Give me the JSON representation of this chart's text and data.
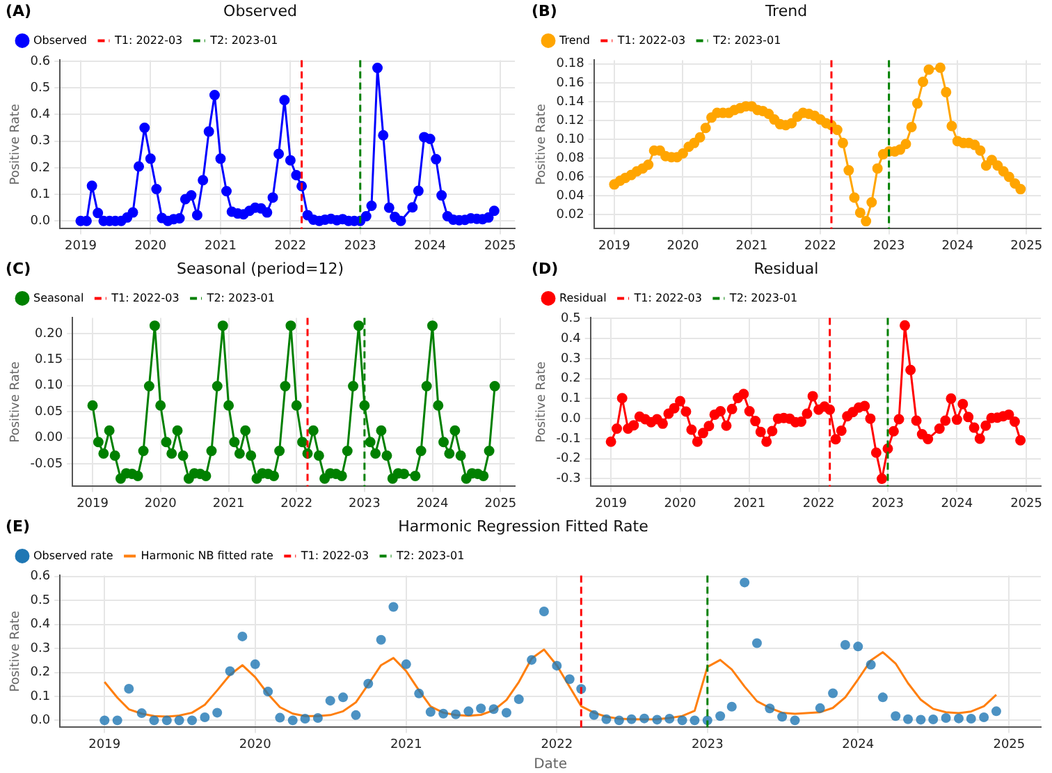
{
  "chart_data": [
    {
      "type": "line",
      "title": "Observed",
      "ylabel": "Positive Rate",
      "annotations": [
        "(A)"
      ],
      "grid": true,
      "legend": "top left",
      "marker": "circle",
      "x": [
        "2019-01",
        "2019-02",
        "2019-03",
        "2019-04",
        "2019-05",
        "2019-06",
        "2019-07",
        "2019-08",
        "2019-09",
        "2019-10",
        "2019-11",
        "2019-12",
        "2020-01",
        "2020-02",
        "2020-03",
        "2020-04",
        "2020-05",
        "2020-06",
        "2020-07",
        "2020-08",
        "2020-09",
        "2020-10",
        "2020-11",
        "2020-12",
        "2021-01",
        "2021-02",
        "2021-03",
        "2021-04",
        "2021-05",
        "2021-06",
        "2021-07",
        "2021-08",
        "2021-09",
        "2021-10",
        "2021-11",
        "2021-12",
        "2022-01",
        "2022-02",
        "2022-03",
        "2022-04",
        "2022-05",
        "2022-06",
        "2022-07",
        "2022-08",
        "2022-09",
        "2022-10",
        "2022-11",
        "2022-12",
        "2023-01",
        "2023-02",
        "2023-03",
        "2023-04",
        "2023-05",
        "2023-06",
        "2023-07",
        "2023-08",
        "2023-10",
        "2023-11",
        "2023-12",
        "2024-01",
        "2024-02",
        "2024-03",
        "2024-04",
        "2024-05",
        "2024-06",
        "2024-07",
        "2024-08",
        "2024-09",
        "2024-10",
        "2024-11",
        "2024-12"
      ],
      "xlim": [
        "2018-09-15",
        "2025-03-19"
      ],
      "xticks": [
        "2019",
        "2020",
        "2021",
        "2022",
        "2023",
        "2024",
        "2025"
      ],
      "ylim": [
        -0.029,
        0.604
      ],
      "yticks": [
        {
          "value": 0,
          "label": "0.0"
        },
        0.1,
        0.2,
        0.3,
        0.4,
        0.5,
        0.6
      ],
      "series": [
        {
          "name": "Observed",
          "color": "#0000ff",
          "values": [
            0,
            0,
            0.132,
            0.03,
            0,
            0,
            0,
            0,
            0.013,
            0.032,
            0.205,
            0.35,
            0.234,
            0.12,
            0.011,
            0,
            0.007,
            0.01,
            0.082,
            0.096,
            0.022,
            0.153,
            0.336,
            0.473,
            0.234,
            0.112,
            0.035,
            0.028,
            0.025,
            0.038,
            0.05,
            0.047,
            0.032,
            0.088,
            0.252,
            0.454,
            0.228,
            0.172,
            0.131,
            0.022,
            0.005,
            0,
            0.005,
            0.008,
            0.003,
            0.007,
            0,
            0,
            0,
            0.018,
            0.057,
            0.575,
            0.322,
            0.05,
            0.015,
            0,
            0.051,
            0.113,
            0.315,
            0.308,
            0.232,
            0.096,
            0.018,
            0.005,
            0.003,
            0.004,
            0.01,
            0.008,
            0.007,
            0.013,
            0.038
          ]
        }
      ],
      "ref_lines": [
        {
          "axis": "x",
          "value": "2022-03",
          "label": "T1: 2022-03",
          "color": "#ff0000",
          "line_style": "dashed"
        },
        {
          "axis": "x",
          "value": "2023-01",
          "label": "T2: 2023-01",
          "color": "#008000",
          "line_style": "dashed"
        }
      ]
    },
    {
      "type": "line",
      "title": "Trend",
      "ylabel": "Positive Rate",
      "annotations": [
        "(B)"
      ],
      "grid": true,
      "legend": "top left",
      "marker": "circle",
      "x": [
        "2019-01",
        "2019-02",
        "2019-03",
        "2019-04",
        "2019-05",
        "2019-06",
        "2019-07",
        "2019-08",
        "2019-09",
        "2019-10",
        "2019-11",
        "2019-12",
        "2020-01",
        "2020-02",
        "2020-03",
        "2020-04",
        "2020-05",
        "2020-06",
        "2020-07",
        "2020-08",
        "2020-09",
        "2020-10",
        "2020-11",
        "2020-12",
        "2021-01",
        "2021-02",
        "2021-03",
        "2021-04",
        "2021-05",
        "2021-06",
        "2021-07",
        "2021-08",
        "2021-09",
        "2021-10",
        "2021-11",
        "2021-12",
        "2022-01",
        "2022-02",
        "2022-03",
        "2022-04",
        "2022-05",
        "2022-06",
        "2022-07",
        "2022-08",
        "2022-09",
        "2022-10",
        "2022-11",
        "2022-12",
        "2023-01",
        "2023-02",
        "2023-03",
        "2023-04",
        "2023-05",
        "2023-06",
        "2023-07",
        "2023-08",
        "2023-10",
        "2023-11",
        "2023-12",
        "2024-01",
        "2024-02",
        "2024-03",
        "2024-04",
        "2024-05",
        "2024-06",
        "2024-07",
        "2024-08",
        "2024-09",
        "2024-10",
        "2024-11",
        "2024-12"
      ],
      "xlim": [
        "2018-09-15",
        "2025-03-19"
      ],
      "xticks": [
        "2019",
        "2020",
        "2021",
        "2022",
        "2023",
        "2024",
        "2025"
      ],
      "ylim": [
        0.005,
        0.184
      ],
      "yticks": [
        0.02,
        0.04,
        0.06,
        0.08,
        {
          "value": 0.1,
          "label": "0.10"
        },
        0.12,
        0.14,
        0.16,
        0.18
      ],
      "series": [
        {
          "name": "Trend",
          "color": "#ffa500",
          "values": [
            0.052,
            0.056,
            0.059,
            0.062,
            0.066,
            0.069,
            0.073,
            0.088,
            0.088,
            0.082,
            0.081,
            0.081,
            0.085,
            0.092,
            0.096,
            0.102,
            0.112,
            0.123,
            0.128,
            0.128,
            0.128,
            0.131,
            0.133,
            0.135,
            0.135,
            0.131,
            0.13,
            0.127,
            0.121,
            0.116,
            0.115,
            0.117,
            0.124,
            0.128,
            0.127,
            0.125,
            0.121,
            0.117,
            0.115,
            0.11,
            0.096,
            0.067,
            0.038,
            0.022,
            0.013,
            0.033,
            0.069,
            0.084,
            0.087,
            0.087,
            0.089,
            0.095,
            0.113,
            0.138,
            0.161,
            0.174,
            0.176,
            0.15,
            0.114,
            0.098,
            0.096,
            0.096,
            0.094,
            0.088,
            0.072,
            0.078,
            0.072,
            0.066,
            0.06,
            0.053,
            0.047
          ]
        }
      ],
      "ref_lines": [
        {
          "axis": "x",
          "value": "2022-03",
          "label": "T1: 2022-03",
          "color": "#ff0000",
          "line_style": "dashed"
        },
        {
          "axis": "x",
          "value": "2023-01",
          "label": "T2: 2023-01",
          "color": "#008000",
          "line_style": "dashed"
        }
      ]
    },
    {
      "type": "line",
      "title": "Seasonal (period=12)",
      "ylabel": "Positive Rate",
      "annotations": [
        "(C)"
      ],
      "grid": true,
      "legend": "top left",
      "marker": "circle",
      "x": [
        "2019-01",
        "2019-02",
        "2019-03",
        "2019-04",
        "2019-05",
        "2019-06",
        "2019-07",
        "2019-08",
        "2019-09",
        "2019-10",
        "2019-11",
        "2019-12",
        "2020-01",
        "2020-02",
        "2020-03",
        "2020-04",
        "2020-05",
        "2020-06",
        "2020-07",
        "2020-08",
        "2020-09",
        "2020-10",
        "2020-11",
        "2020-12",
        "2021-01",
        "2021-02",
        "2021-03",
        "2021-04",
        "2021-05",
        "2021-06",
        "2021-07",
        "2021-08",
        "2021-09",
        "2021-10",
        "2021-11",
        "2021-12",
        "2022-01",
        "2022-02",
        "2022-03",
        "2022-04",
        "2022-05",
        "2022-06",
        "2022-07",
        "2022-08",
        "2022-09",
        "2022-10",
        "2022-11",
        "2022-12",
        "2023-01",
        "2023-02",
        "2023-03",
        "2023-04",
        "2023-05",
        "2023-06",
        "2023-07",
        "2023-08",
        "2023-10",
        "2023-11",
        "2023-12",
        "2024-01",
        "2024-02",
        "2024-03",
        "2024-04",
        "2024-05",
        "2024-06",
        "2024-07",
        "2024-08",
        "2024-09",
        "2024-10",
        "2024-11",
        "2024-12"
      ],
      "xlim": [
        "2018-09-15",
        "2025-03-19"
      ],
      "xticks": [
        "2019",
        "2020",
        "2021",
        "2022",
        "2023",
        "2024",
        "2025"
      ],
      "ylim": [
        -0.093,
        0.23
      ],
      "yticks": [
        -0.05,
        {
          "value": 0,
          "label": "0.00"
        },
        0.05,
        {
          "value": 0.1,
          "label": "0.10"
        },
        0.15,
        {
          "value": 0.2,
          "label": "0.20"
        }
      ],
      "series": [
        {
          "name": "Seasonal",
          "color": "#008000",
          "values": [
            0.062,
            -0.008,
            -0.03,
            0.014,
            -0.034,
            -0.078,
            -0.068,
            -0.069,
            -0.073,
            -0.025,
            0.099,
            0.215,
            0.062,
            -0.008,
            -0.03,
            0.014,
            -0.034,
            -0.078,
            -0.068,
            -0.069,
            -0.073,
            -0.025,
            0.099,
            0.215,
            0.062,
            -0.008,
            -0.03,
            0.014,
            -0.034,
            -0.078,
            -0.068,
            -0.069,
            -0.073,
            -0.025,
            0.099,
            0.215,
            0.062,
            -0.008,
            -0.03,
            0.014,
            -0.034,
            -0.078,
            -0.068,
            -0.069,
            -0.073,
            -0.025,
            0.099,
            0.215,
            0.062,
            -0.008,
            -0.03,
            0.014,
            -0.034,
            -0.078,
            -0.068,
            -0.069,
            -0.073,
            -0.025,
            0.099,
            0.215,
            0.062,
            -0.008,
            -0.03,
            0.014,
            -0.034,
            -0.078,
            -0.068,
            -0.069,
            -0.073,
            -0.025,
            0.099
          ]
        }
      ],
      "ref_lines": [
        {
          "axis": "x",
          "value": "2022-03",
          "label": "T1: 2022-03",
          "color": "#ff0000",
          "line_style": "dashed"
        },
        {
          "axis": "x",
          "value": "2023-01",
          "label": "T2: 2023-01",
          "color": "#008000",
          "line_style": "dashed"
        }
      ]
    },
    {
      "type": "line",
      "title": "Residual",
      "ylabel": "Positive Rate",
      "annotations": [
        "(D)"
      ],
      "grid": true,
      "legend": "top left",
      "marker": "circle",
      "x": [
        "2019-01",
        "2019-02",
        "2019-03",
        "2019-04",
        "2019-05",
        "2019-06",
        "2019-07",
        "2019-08",
        "2019-09",
        "2019-10",
        "2019-11",
        "2019-12",
        "2020-01",
        "2020-02",
        "2020-03",
        "2020-04",
        "2020-05",
        "2020-06",
        "2020-07",
        "2020-08",
        "2020-09",
        "2020-10",
        "2020-11",
        "2020-12",
        "2021-01",
        "2021-02",
        "2021-03",
        "2021-04",
        "2021-05",
        "2021-06",
        "2021-07",
        "2021-08",
        "2021-09",
        "2021-10",
        "2021-11",
        "2021-12",
        "2022-01",
        "2022-02",
        "2022-03",
        "2022-04",
        "2022-05",
        "2022-06",
        "2022-07",
        "2022-08",
        "2022-09",
        "2022-10",
        "2022-11",
        "2022-12",
        "2023-01",
        "2023-02",
        "2023-03",
        "2023-04",
        "2023-05",
        "2023-06",
        "2023-07",
        "2023-08",
        "2023-10",
        "2023-11",
        "2023-12",
        "2024-01",
        "2024-02",
        "2024-03",
        "2024-04",
        "2024-05",
        "2024-06",
        "2024-07",
        "2024-08",
        "2024-09",
        "2024-10",
        "2024-11",
        "2024-12"
      ],
      "xlim": [
        "2018-09-15",
        "2025-03-19"
      ],
      "xticks": [
        "2019",
        "2020",
        "2021",
        "2022",
        "2023",
        "2024",
        "2025"
      ],
      "ylim": [
        -0.338,
        0.503
      ],
      "yticks": [
        -0.3,
        -0.2,
        -0.1,
        {
          "value": 0,
          "label": "0.0"
        },
        0.1,
        0.2,
        0.3,
        0.4,
        0.5
      ],
      "series": [
        {
          "name": "Residual",
          "color": "#ff0000",
          "values": [
            -0.115,
            -0.05,
            0.102,
            -0.05,
            -0.033,
            0.01,
            -0.003,
            -0.018,
            -0.003,
            -0.025,
            0.025,
            0.052,
            0.087,
            0.035,
            -0.055,
            -0.115,
            -0.072,
            -0.037,
            0.02,
            0.037,
            -0.035,
            0.048,
            0.103,
            0.123,
            0.037,
            -0.012,
            -0.066,
            -0.115,
            -0.062,
            0,
            0.003,
            0,
            -0.018,
            -0.015,
            0.025,
            0.112,
            0.045,
            0.06,
            0.045,
            -0.103,
            -0.06,
            0.012,
            0.033,
            0.055,
            0.063,
            0,
            -0.17,
            -0.3,
            -0.15,
            -0.063,
            -0.003,
            0.465,
            0.243,
            -0.01,
            -0.078,
            -0.102,
            -0.05,
            -0.01,
            0.1,
            -0.005,
            0.073,
            0.008,
            -0.045,
            -0.1,
            -0.035,
            0.003,
            0.005,
            0.012,
            0.02,
            -0.015,
            -0.108
          ]
        }
      ],
      "ref_lines": [
        {
          "axis": "x",
          "value": "2022-03",
          "label": "T1: 2022-03",
          "color": "#ff0000",
          "line_style": "dashed"
        },
        {
          "axis": "x",
          "value": "2023-01",
          "label": "T2: 2023-01",
          "color": "#008000",
          "line_style": "dashed"
        }
      ]
    },
    {
      "type": "line",
      "title": "Harmonic Regression Fitted Rate",
      "xlabel": "Date",
      "ylabel": "Positive Rate",
      "annotations": [
        "(E)"
      ],
      "grid": true,
      "legend": "top left",
      "x": [
        "2019-01",
        "2019-02",
        "2019-03",
        "2019-04",
        "2019-05",
        "2019-06",
        "2019-07",
        "2019-08",
        "2019-09",
        "2019-10",
        "2019-11",
        "2019-12",
        "2020-01",
        "2020-02",
        "2020-03",
        "2020-04",
        "2020-05",
        "2020-06",
        "2020-07",
        "2020-08",
        "2020-09",
        "2020-10",
        "2020-11",
        "2020-12",
        "2021-01",
        "2021-02",
        "2021-03",
        "2021-04",
        "2021-05",
        "2021-06",
        "2021-07",
        "2021-08",
        "2021-09",
        "2021-10",
        "2021-11",
        "2021-12",
        "2022-01",
        "2022-02",
        "2022-03",
        "2022-04",
        "2022-05",
        "2022-06",
        "2022-07",
        "2022-08",
        "2022-09",
        "2022-10",
        "2022-11",
        "2022-12",
        "2023-01",
        "2023-02",
        "2023-03",
        "2023-04",
        "2023-05",
        "2023-06",
        "2023-07",
        "2023-08",
        "2023-10",
        "2023-11",
        "2023-12",
        "2024-01",
        "2024-02",
        "2024-03",
        "2024-04",
        "2024-05",
        "2024-06",
        "2024-07",
        "2024-08",
        "2024-09",
        "2024-10",
        "2024-11",
        "2024-12"
      ],
      "xlim": [
        "2018-09-15",
        "2025-03-19"
      ],
      "xticks": [
        "2019",
        "2020",
        "2021",
        "2022",
        "2023",
        "2024",
        "2025"
      ],
      "ylim": [
        -0.029,
        0.604
      ],
      "yticks": [
        {
          "value": 0,
          "label": "0.0"
        },
        0.1,
        0.2,
        0.3,
        0.4,
        0.5,
        0.6
      ],
      "series": [
        {
          "name": "Observed rate",
          "type": "scatter",
          "color": "#1f77b4",
          "values": [
            0,
            0,
            0.132,
            0.03,
            0,
            0,
            0,
            0,
            0.013,
            0.032,
            0.205,
            0.35,
            0.234,
            0.12,
            0.011,
            0,
            0.007,
            0.01,
            0.082,
            0.096,
            0.022,
            0.153,
            0.336,
            0.473,
            0.234,
            0.112,
            0.035,
            0.028,
            0.025,
            0.038,
            0.05,
            0.047,
            0.032,
            0.088,
            0.252,
            0.454,
            0.228,
            0.172,
            0.131,
            0.022,
            0.005,
            0,
            0.005,
            0.008,
            0.003,
            0.007,
            0,
            0,
            0,
            0.018,
            0.057,
            0.575,
            0.322,
            0.05,
            0.015,
            0,
            0.051,
            0.113,
            0.315,
            0.308,
            0.232,
            0.096,
            0.018,
            0.005,
            0.003,
            0.004,
            0.01,
            0.008,
            0.007,
            0.013,
            0.038
          ]
        },
        {
          "name": "Harmonic NB fitted rate",
          "type": "line",
          "color": "#ff7f0e",
          "values": [
            0.16,
            0.095,
            0.046,
            0.028,
            0.018,
            0.016,
            0.02,
            0.032,
            0.065,
            0.125,
            0.19,
            0.23,
            0.18,
            0.11,
            0.055,
            0.028,
            0.018,
            0.018,
            0.022,
            0.038,
            0.075,
            0.15,
            0.23,
            0.26,
            0.205,
            0.125,
            0.058,
            0.032,
            0.022,
            0.019,
            0.023,
            0.042,
            0.085,
            0.16,
            0.258,
            0.295,
            0.229,
            0.14,
            0.059,
            0.032,
            0.015,
            0.007,
            0.005,
            0.004,
            0.005,
            0.01,
            0.018,
            0.04,
            0.223,
            0.252,
            0.212,
            0.141,
            0.08,
            0.052,
            0.032,
            0.027,
            0.034,
            0.052,
            0.096,
            0.171,
            0.25,
            0.284,
            0.237,
            0.155,
            0.086,
            0.048,
            0.034,
            0.03,
            0.037,
            0.059,
            0.107
          ]
        }
      ],
      "ref_lines": [
        {
          "axis": "x",
          "value": "2022-03",
          "label": "T1: 2022-03",
          "color": "#ff0000",
          "line_style": "dashed"
        },
        {
          "axis": "x",
          "value": "2023-01",
          "label": "T2: 2023-01",
          "color": "#008000",
          "line_style": "dashed"
        }
      ]
    }
  ]
}
